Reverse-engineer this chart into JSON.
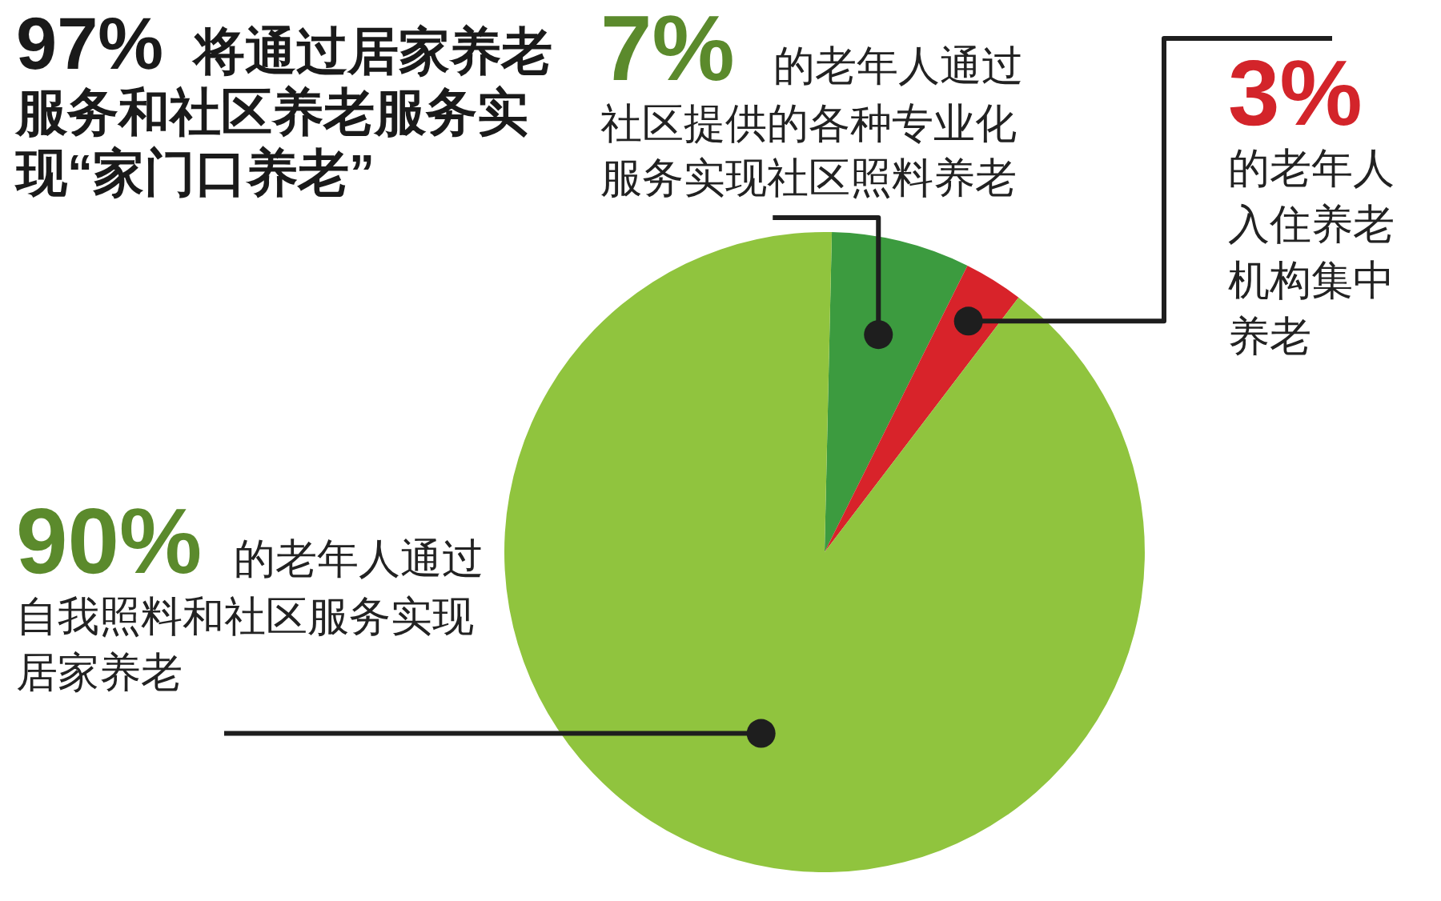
{
  "chart_data": {
    "type": "pie",
    "title": "97% 将通过居家养老服务和社区养老服务实现“家门口养老”",
    "categories": [
      "的老年人通过社区提供的各种专业化服务实现社区照料养老",
      "的老年人入住养老机构集中养老",
      "的老年人通过自我照料和社区服务实现居家养老"
    ],
    "values": [
      7,
      3,
      90
    ],
    "value_labels": [
      "7%",
      "3%",
      "90%"
    ],
    "colors": [
      "#3c9b3f",
      "#d8232a",
      "#90c43e"
    ]
  }
}
